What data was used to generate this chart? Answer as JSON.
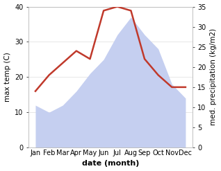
{
  "months": [
    "Jan",
    "Feb",
    "Mar",
    "Apr",
    "May",
    "Jun",
    "Jul",
    "Aug",
    "Sep",
    "Oct",
    "Nov",
    "Dec"
  ],
  "x": [
    1,
    2,
    3,
    4,
    5,
    6,
    7,
    8,
    9,
    10,
    11,
    12
  ],
  "temp": [
    12,
    10,
    12,
    16,
    21,
    25,
    32,
    37,
    32,
    28,
    18,
    14
  ],
  "precip": [
    14,
    18,
    21,
    24,
    22,
    34,
    35,
    34,
    22,
    18,
    15,
    15
  ],
  "temp_ylim": [
    0,
    40
  ],
  "precip_ylim": [
    0,
    35
  ],
  "temp_color_fill": "#c5cff0",
  "temp_color_line": "#c5cff0",
  "precip_color": "#c0392b",
  "xlabel": "date (month)",
  "ylabel_left": "max temp (C)",
  "ylabel_right": "med. precipitation (kg/m2)",
  "bg_color": "#ffffff",
  "label_fontsize": 7.5,
  "tick_fontsize": 7,
  "xlabel_fontsize": 8,
  "precip_linewidth": 1.8,
  "temp_yticks": [
    0,
    10,
    20,
    30,
    40
  ],
  "precip_yticks": [
    0,
    5,
    10,
    15,
    20,
    25,
    30,
    35
  ]
}
